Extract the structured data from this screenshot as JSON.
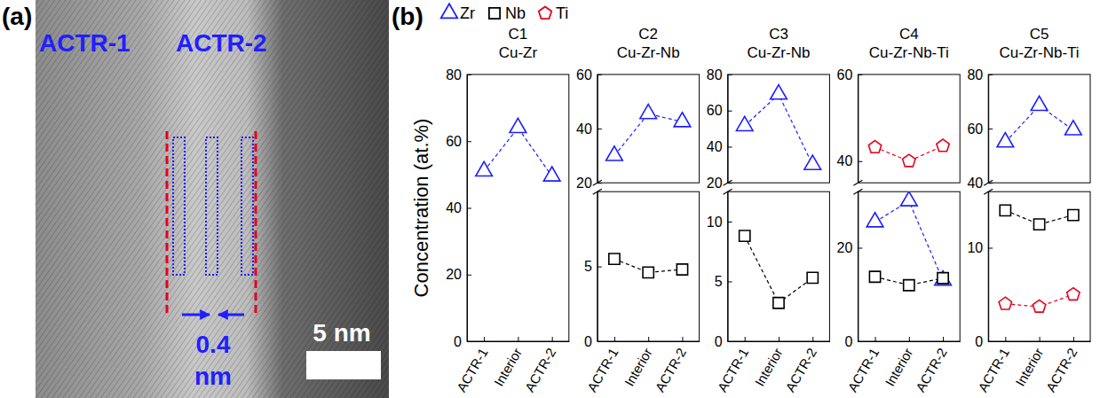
{
  "panel_a": {
    "label": "(a)",
    "annotations": [
      "ACTR-1",
      "ACTR-2"
    ],
    "spacing": "0.4 nm",
    "scale_bar": "5 nm"
  },
  "panel_b": {
    "label": "(b)"
  },
  "chart_data": [
    {
      "type": "line",
      "title": "C1",
      "subtitle": "Cu-Zr",
      "ylabel": "Concentration (at.%)",
      "categories": [
        "ACTR-1",
        "Interior",
        "ACTR-2"
      ],
      "series": [
        {
          "name": "Zr",
          "color": "#1f1fff",
          "marker": "triangle",
          "line_style": "dashed",
          "values": [
            51,
            64,
            49.5
          ]
        }
      ],
      "ylim": [
        [
          0,
          80
        ]
      ],
      "yticks": [
        [
          0,
          20,
          40,
          60,
          80
        ]
      ]
    },
    {
      "type": "line",
      "title": "C2",
      "subtitle": "Cu-Zr-Nb",
      "categories": [
        "ACTR-1",
        "Interior",
        "ACTR-2"
      ],
      "series": [
        {
          "name": "Zr",
          "color": "#1f1fff",
          "marker": "triangle",
          "line_style": "dashed",
          "values": [
            30,
            45.5,
            42.5
          ]
        },
        {
          "name": "Nb",
          "color": "#000000",
          "marker": "square",
          "line_style": "dashed",
          "values": [
            5.5,
            4.6,
            4.8
          ]
        }
      ],
      "ylim": [
        [
          0,
          10
        ],
        [
          20,
          60
        ]
      ],
      "yticks": [
        [
          0,
          5
        ],
        [
          20,
          40,
          60
        ]
      ]
    },
    {
      "type": "line",
      "title": "C3",
      "subtitle": "Cu-Zr-Nb",
      "categories": [
        "ACTR-1",
        "Interior",
        "ACTR-2"
      ],
      "series": [
        {
          "name": "Zr",
          "color": "#1f1fff",
          "marker": "triangle",
          "line_style": "dashed",
          "values": [
            51.5,
            69,
            30
          ]
        },
        {
          "name": "Nb",
          "color": "#000000",
          "marker": "square",
          "line_style": "dashed",
          "values": [
            8.8,
            3.2,
            5.3
          ]
        }
      ],
      "ylim": [
        [
          0,
          12.5
        ],
        [
          20,
          80
        ]
      ],
      "yticks": [
        [
          0,
          5,
          10
        ],
        [
          20,
          40,
          60,
          80
        ]
      ]
    },
    {
      "type": "line",
      "title": "C4",
      "subtitle": "Cu-Zr-Nb-Ti",
      "categories": [
        "ACTR-1",
        "Interior",
        "ACTR-2"
      ],
      "series": [
        {
          "name": "Zr",
          "color": "#1f1fff",
          "marker": "triangle",
          "line_style": "dashed",
          "values": [
            25.5,
            30,
            13
          ]
        },
        {
          "name": "Nb",
          "color": "#000000",
          "marker": "square",
          "line_style": "dashed",
          "values": [
            13.8,
            12,
            13.5
          ]
        },
        {
          "name": "Ti",
          "color": "#e8001c",
          "marker": "pentagon",
          "line_style": "dashed",
          "values": [
            43.2,
            40,
            43.5
          ]
        }
      ],
      "ylim": [
        [
          0,
          32
        ],
        [
          35,
          60
        ]
      ],
      "yticks": [
        [
          0,
          20
        ],
        [
          40,
          60
        ]
      ]
    },
    {
      "type": "line",
      "title": "C5",
      "subtitle": "Cu-Zr-Nb-Ti",
      "categories": [
        "ACTR-1",
        "Interior",
        "ACTR-2"
      ],
      "series": [
        {
          "name": "Zr",
          "color": "#1f1fff",
          "marker": "triangle",
          "line_style": "dashed",
          "values": [
            55,
            68.5,
            59.5
          ]
        },
        {
          "name": "Nb",
          "color": "#000000",
          "marker": "square",
          "line_style": "dashed",
          "values": [
            14,
            12.5,
            13.5
          ]
        },
        {
          "name": "Ti",
          "color": "#e8001c",
          "marker": "pentagon",
          "line_style": "dashed",
          "values": [
            4,
            3.7,
            5
          ]
        }
      ],
      "ylim": [
        [
          0,
          16
        ],
        [
          40,
          80
        ]
      ],
      "yticks": [
        [
          0,
          10
        ],
        [
          40,
          60,
          80
        ]
      ]
    }
  ]
}
